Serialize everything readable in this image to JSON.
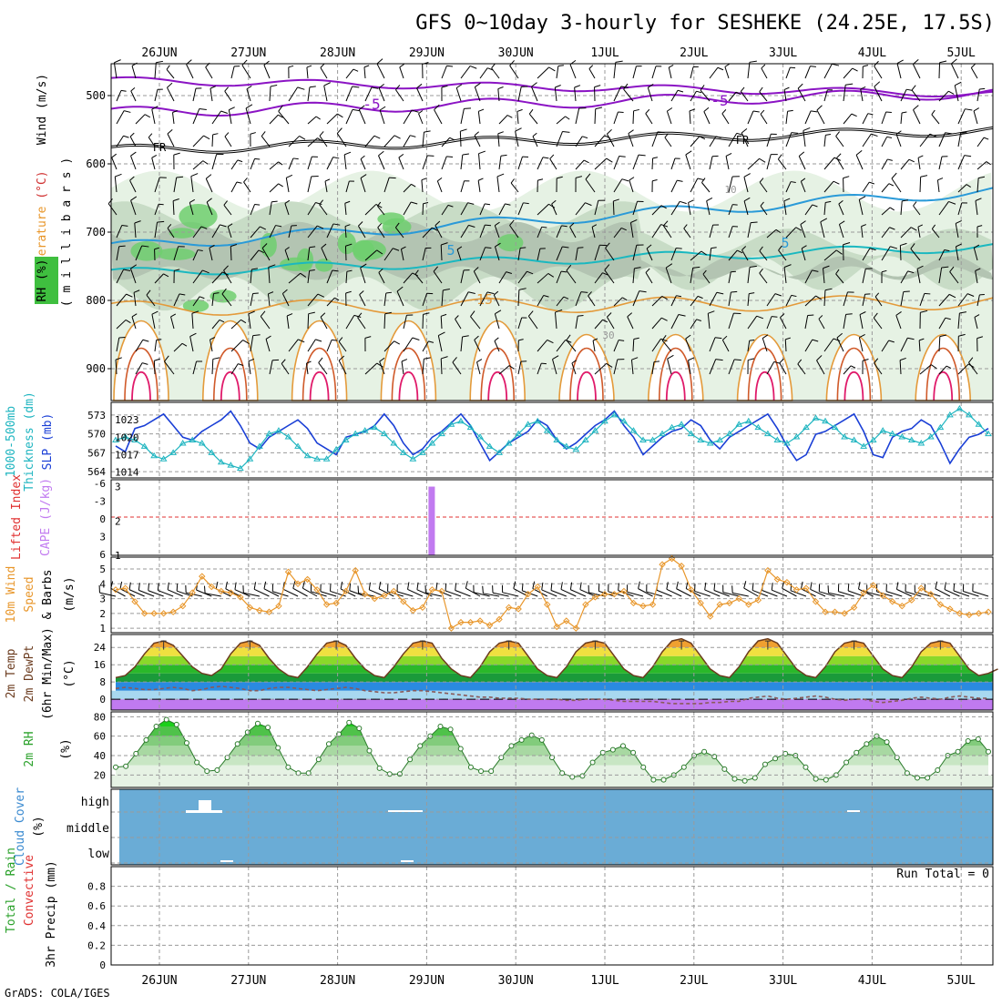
{
  "title": "GFS 0~10day 3-hourly for SESHEKE (24.25E, 17.5S)",
  "footer": "GrADS: COLA/IGES",
  "dates": [
    "26JUN",
    "27JUN",
    "28JUN",
    "29JUN",
    "30JUN",
    "1JUL",
    "2JUL",
    "3JUL",
    "4JUL",
    "5JUL"
  ],
  "colors": {
    "grid": "#9a9a9a",
    "axis": "#000000",
    "temp": "#8b14c4",
    "wind": "#000000",
    "rh": "#3fbf3f",
    "thk": "#1fb5c0",
    "slp": "#1a3fd6",
    "li": "#e03030",
    "cape": "#c17af0",
    "wind10": "#e8962a",
    "t2m": "#6b3b1e",
    "dew": "#8a5a5a",
    "rh2m": "#2aa12a",
    "cloud": "#6aacd6",
    "precip": "#2aa12a"
  },
  "panels": {
    "upper": {
      "ylabel_parts": [
        "Wind",
        "(m/s)",
        "Temperature",
        "(°C)",
        "RH",
        "(%)"
      ],
      "pressure_label": "( m i l l i b a r s )",
      "yticks": [
        "500",
        "600",
        "700",
        "800",
        "900"
      ],
      "contour_labels": [
        "-5",
        "-5",
        "FR",
        "FR",
        "5",
        "5",
        "15",
        "10",
        "30"
      ]
    },
    "thickness": {
      "ylabel_parts": [
        "1000-500mb",
        "Thickness",
        "(dm)",
        "SLP",
        "(mb)"
      ],
      "left_ticks": [
        "573",
        "570",
        "567",
        "564"
      ],
      "right_ticks": [
        "1023",
        "1020",
        "1017",
        "1014"
      ]
    },
    "lifted": {
      "ylabel_parts": [
        "Lifted Index",
        "CAPE",
        "(J/kg)"
      ],
      "left_ticks": [
        "-6",
        "-3",
        "0",
        "3",
        "6"
      ],
      "right_ticks": [
        "3",
        "2",
        "1"
      ]
    },
    "wind10": {
      "ylabel_parts": [
        "10m Wind",
        "Speed",
        "& Barbs",
        "(m/s)"
      ],
      "yticks": [
        "5",
        "4",
        "3",
        "2",
        "1"
      ]
    },
    "temp2m": {
      "ylabel_parts": [
        "2m Temp",
        "2m DewPt",
        "(6hr Min/Max)",
        "(°C)"
      ],
      "yticks": [
        "24",
        "16",
        "8",
        "0"
      ]
    },
    "rh2m": {
      "ylabel_parts": [
        "2m RH",
        "(%)"
      ],
      "yticks": [
        "80",
        "60",
        "40",
        "20"
      ]
    },
    "cloud": {
      "ylabel_parts": [
        "Cloud Cover",
        "(%)"
      ],
      "levels": [
        "high",
        "middle",
        "low"
      ]
    },
    "precip": {
      "ylabel_parts": [
        "Total / Rain",
        "Convective",
        "3hr Precip (mm)"
      ],
      "yticks": [
        "0.8",
        "0.6",
        "0.4",
        "0.2",
        "0"
      ],
      "run_total": "Run Total = 0"
    }
  },
  "chart_data": [
    {
      "type": "line",
      "name": "1000-500mb Thickness and SLP",
      "series": [
        {
          "name": "SLP",
          "unit": "mb",
          "values": [
            1018.5,
            1017.5,
            1021.5,
            1022,
            1023,
            1024,
            1022,
            1020,
            1019.5,
            1021,
            1022,
            1023,
            1024.5,
            1022,
            1019,
            1018,
            1020,
            1021,
            1022,
            1023,
            1021.5,
            1019,
            1018,
            1017,
            1020,
            1020.5,
            1021,
            1022,
            1024,
            1022,
            1019,
            1017,
            1018,
            1020,
            1021,
            1022.5,
            1024,
            1022,
            1019,
            1016,
            1017.5,
            1019,
            1020,
            1021,
            1023,
            1022,
            1019.5,
            1018,
            1019,
            1020.5,
            1022,
            1023,
            1024.5,
            1022,
            1020,
            1017,
            1018.5,
            1020,
            1021,
            1021.5,
            1023,
            1022,
            1019.5,
            1018,
            1020,
            1021,
            1022,
            1023,
            1024,
            1021.5,
            1018.5,
            1016,
            1017,
            1020.5,
            1021,
            1022,
            1023,
            1024,
            1021,
            1017,
            1016.5,
            1020,
            1021,
            1021.5,
            1023,
            1022,
            1019,
            1015.5,
            1018,
            1020,
            1020.5,
            1021.5
          ]
        },
        {
          "name": "Thickness",
          "unit": "dm",
          "values": [
            569,
            569.5,
            569,
            568,
            566.5,
            566,
            567,
            568.5,
            569,
            568.5,
            567,
            565.5,
            565,
            564.5,
            566,
            568,
            570,
            570.5,
            569.5,
            568,
            566.5,
            566,
            566,
            567.5,
            569,
            570,
            570.5,
            571,
            570,
            568.5,
            567,
            566,
            567,
            568.5,
            570,
            571.5,
            572,
            571,
            569.5,
            568,
            567,
            568.5,
            570,
            571.5,
            572,
            570.5,
            569,
            568,
            567.5,
            569,
            570.5,
            572,
            573,
            572,
            570.5,
            569,
            569,
            570,
            571,
            571.5,
            570,
            569,
            568.5,
            569,
            570,
            571.5,
            572,
            571,
            570,
            569,
            568.5,
            569.5,
            571,
            572.5,
            572,
            571,
            569.5,
            569,
            568,
            569,
            570.5,
            570,
            569.5,
            569,
            568.5,
            569.5,
            571,
            573,
            574,
            573,
            571.5,
            570
          ]
        }
      ],
      "left_axis": {
        "label": "1000-500mb Thickness (dm)",
        "ylim": [
          563,
          575
        ]
      },
      "right_axis": {
        "label": "SLP (mb)",
        "ylim": [
          1013,
          1026
        ]
      }
    },
    {
      "type": "bar",
      "name": "CAPE",
      "unit": "J/kg",
      "x_index": [
        33
      ],
      "values": [
        3
      ],
      "ylim": [
        1,
        3.2
      ]
    },
    {
      "type": "line",
      "name": "10m Wind Speed",
      "unit": "m/s",
      "values": [
        3.6,
        3.7,
        2.8,
        2.0,
        2.0,
        2.0,
        2.1,
        2.5,
        3.4,
        4.5,
        3.8,
        3.5,
        3.4,
        3.1,
        2.4,
        2.2,
        2.1,
        2.5,
        4.8,
        4.0,
        4.3,
        3.6,
        2.6,
        2.7,
        3.5,
        4.9,
        3.3,
        3.0,
        3.2,
        3.5,
        2.8,
        2.2,
        2.4,
        3.6,
        3.5,
        1.0,
        1.4,
        1.4,
        1.5,
        1.2,
        1.6,
        2.4,
        2.3,
        3.3,
        3.8,
        2.6,
        1.1,
        1.5,
        1.0,
        2.6,
        3.1,
        3.3,
        3.3,
        3.5,
        2.7,
        2.5,
        2.6,
        5.3,
        5.7,
        5.2,
        3.6,
        2.7,
        1.8,
        2.6,
        2.7,
        3.0,
        2.6,
        2.9,
        4.9,
        4.3,
        4.1,
        3.6,
        3.7,
        2.8,
        2.1,
        2.1,
        2.0,
        2.4,
        3.4,
        3.9,
        3.2,
        2.8,
        2.5,
        2.9,
        3.7,
        3.3,
        2.6,
        2.3,
        2.0,
        1.9,
        2.0,
        2.1
      ],
      "ylim": [
        0.7,
        5.8
      ]
    },
    {
      "type": "area",
      "name": "2m Temp",
      "unit": "°C",
      "values": [
        10,
        11,
        15,
        21,
        26,
        27,
        25,
        20,
        15,
        12,
        11,
        14,
        21,
        26,
        27,
        25,
        19,
        14,
        11,
        10,
        15,
        21,
        26,
        27,
        25,
        19,
        14,
        11,
        10,
        15,
        21,
        26,
        27,
        26,
        19,
        14,
        11,
        10,
        15,
        22,
        26,
        27,
        26,
        20,
        14,
        11,
        10,
        15,
        22,
        26,
        27,
        26,
        20,
        14,
        11,
        10,
        15,
        22,
        27,
        28,
        26,
        20,
        14,
        11,
        10,
        15,
        22,
        27,
        28,
        26,
        20,
        14,
        11,
        10,
        15,
        22,
        26,
        27,
        26,
        20,
        14,
        11,
        10,
        15,
        22,
        26,
        27,
        26,
        20,
        14,
        11,
        12,
        14
      ],
      "ylim": [
        -5,
        30
      ]
    },
    {
      "type": "line",
      "name": "2m DewPt",
      "unit": "°C",
      "values": [
        5,
        5.5,
        5,
        4.5,
        4.5,
        5,
        5.5,
        5,
        4,
        4.5,
        5.5,
        6,
        5.5,
        5,
        4,
        4,
        5,
        5.5,
        5.5,
        5,
        4.5,
        4,
        4.5,
        5,
        5.5,
        5,
        4,
        3.5,
        3,
        3,
        3.5,
        4,
        4,
        3.5,
        3,
        2.5,
        2,
        1.5,
        1,
        1,
        0.5,
        0.5,
        0.5,
        0,
        0,
        0,
        0,
        -0.5,
        -0.5,
        0,
        0,
        0,
        -0.5,
        -1,
        -1,
        -1,
        -1,
        -1.5,
        -2,
        -2,
        -2,
        -2,
        -1.5,
        -1.5,
        -1,
        -1,
        0.5,
        1,
        1.5,
        0.5,
        0,
        0.5,
        1,
        1.5,
        1,
        0,
        -0.5,
        0,
        0,
        -1,
        -1.5,
        -1,
        -0.5,
        0.5,
        1,
        0.5,
        0,
        1,
        1.5,
        1,
        0.5,
        0.5
      ],
      "ylim": [
        -5,
        30
      ]
    },
    {
      "type": "area",
      "name": "2m RH",
      "unit": "%",
      "values": [
        28,
        29,
        42,
        56,
        70,
        77,
        72,
        53,
        33,
        24,
        25,
        38,
        52,
        64,
        73,
        69,
        48,
        28,
        22,
        22,
        36,
        52,
        62,
        74,
        68,
        45,
        27,
        21,
        21,
        36,
        50,
        60,
        70,
        67,
        47,
        28,
        24,
        24,
        38,
        50,
        56,
        61,
        56,
        38,
        22,
        18,
        19,
        33,
        43,
        46,
        50,
        43,
        28,
        15,
        15,
        20,
        28,
        40,
        44,
        39,
        26,
        16,
        14,
        17,
        31,
        37,
        42,
        40,
        28,
        16,
        15,
        20,
        33,
        43,
        52,
        60,
        54,
        38,
        22,
        17,
        17,
        25,
        40,
        44,
        55,
        57,
        44
      ]
    },
    {
      "type": "bar",
      "name": "3hr Precip",
      "unit": "mm",
      "values": [],
      "ylim": [
        0,
        1
      ]
    }
  ]
}
